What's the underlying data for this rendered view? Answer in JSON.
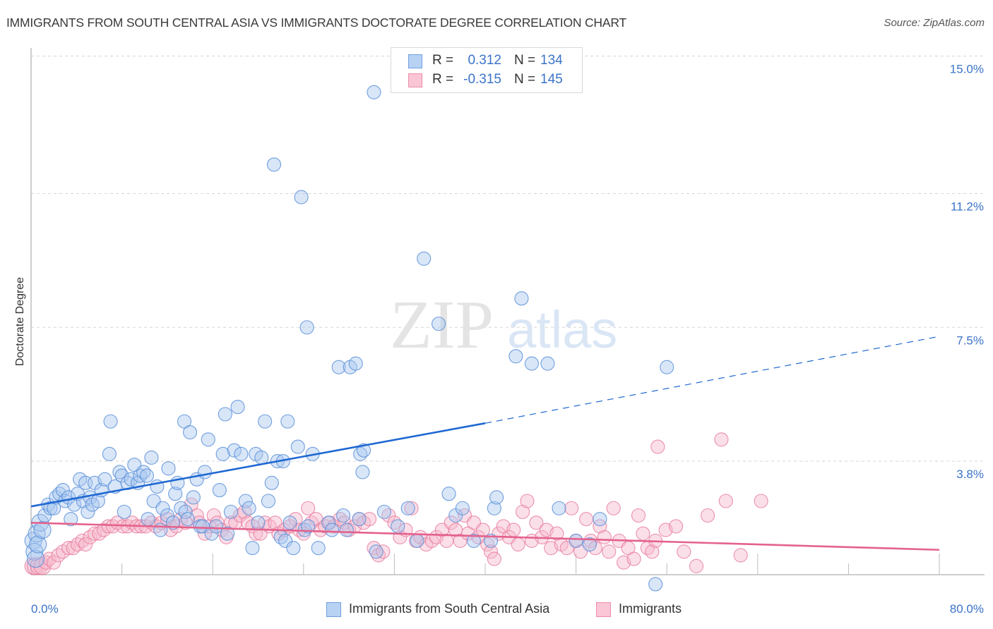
{
  "header": {
    "title": "IMMIGRANTS FROM SOUTH CENTRAL ASIA VS IMMIGRANTS DOCTORATE DEGREE CORRELATION CHART",
    "source": "Source: ZipAtlas.com"
  },
  "watermark": {
    "zip": "ZIP",
    "atlas": "atlas"
  },
  "legend": {
    "series": [
      {
        "r_label": "R =",
        "r_value": "0.312",
        "n_label": "N =",
        "n_value": "134"
      },
      {
        "r_label": "R =",
        "r_value": "-0.315",
        "n_label": "N =",
        "n_value": "145"
      }
    ]
  },
  "bottom_legend": [
    {
      "label": "Immigrants from South Central Asia"
    },
    {
      "label": "Immigrants"
    }
  ],
  "colors": {
    "blue_fill": "#a9c8f0",
    "blue_stroke": "#5a8fd8",
    "blue_line": "#1f68d2",
    "pink_fill": "#f7b9cc",
    "pink_stroke": "#e87fa0",
    "pink_line": "#e4628d",
    "tick_text": "#3b73c8",
    "grid": "#d5d5d5",
    "axis": "#bdbdbd"
  },
  "chart_data": {
    "type": "scatter",
    "title": "IMMIGRANTS FROM SOUTH CENTRAL ASIA VS IMMIGRANTS DOCTORATE DEGREE CORRELATION CHART",
    "xlabel": "",
    "ylabel": "Doctorate Degree",
    "xlim": [
      0,
      80
    ],
    "ylim": [
      0,
      15.4
    ],
    "x_tick_labels": [
      {
        "value": 0,
        "label": "0.0%"
      },
      {
        "value": 80,
        "label": "80.0%"
      }
    ],
    "x_minor_ticks": [
      0,
      8,
      16,
      24,
      32,
      40,
      48,
      56,
      64,
      72,
      80
    ],
    "y_ticks": [
      {
        "value": 3.8,
        "label": "3.8%"
      },
      {
        "value": 7.5,
        "label": "7.5%"
      },
      {
        "value": 11.2,
        "label": "11.2%"
      },
      {
        "value": 15.0,
        "label": "15.0%"
      }
    ],
    "grid": "horizontal-dashed",
    "legend_placement": "top-center",
    "series": [
      {
        "name": "Immigrants from South Central Asia",
        "R": 0.312,
        "N": 134,
        "trend": {
          "x0": 0,
          "y0": 2.55,
          "x1": 40,
          "y1": 4.85,
          "dashed_to_x": 80,
          "dashed_to_y": 7.25
        },
        "points": [
          [
            0.2,
            1.6
          ],
          [
            0.3,
            1.3
          ],
          [
            0.4,
            1.1
          ],
          [
            0.5,
            1.8
          ],
          [
            0.6,
            1.5
          ],
          [
            0.8,
            2.1
          ],
          [
            1.0,
            1.9
          ],
          [
            1.2,
            2.3
          ],
          [
            1.5,
            2.6
          ],
          [
            1.7,
            2.5
          ],
          [
            2.0,
            2.5
          ],
          [
            2.2,
            2.8
          ],
          [
            2.5,
            2.9
          ],
          [
            2.8,
            3.0
          ],
          [
            3.0,
            2.7
          ],
          [
            3.3,
            2.8
          ],
          [
            3.5,
            2.2
          ],
          [
            3.8,
            2.6
          ],
          [
            4.1,
            2.9
          ],
          [
            4.3,
            3.3
          ],
          [
            4.6,
            2.7
          ],
          [
            4.8,
            3.2
          ],
          [
            5.0,
            2.4
          ],
          [
            5.2,
            2.8
          ],
          [
            5.4,
            2.6
          ],
          [
            5.6,
            3.2
          ],
          [
            5.9,
            2.7
          ],
          [
            6.2,
            3.0
          ],
          [
            6.5,
            3.3
          ],
          [
            6.9,
            4.0
          ],
          [
            7.0,
            4.9
          ],
          [
            7.4,
            3.1
          ],
          [
            7.8,
            3.5
          ],
          [
            8.0,
            3.4
          ],
          [
            8.2,
            2.4
          ],
          [
            8.5,
            3.2
          ],
          [
            8.8,
            3.3
          ],
          [
            9.1,
            3.7
          ],
          [
            9.4,
            3.2
          ],
          [
            9.6,
            3.4
          ],
          [
            9.9,
            3.5
          ],
          [
            10.2,
            3.4
          ],
          [
            10.3,
            2.2
          ],
          [
            10.6,
            3.9
          ],
          [
            10.8,
            2.7
          ],
          [
            11.1,
            3.1
          ],
          [
            11.4,
            1.9
          ],
          [
            11.6,
            2.5
          ],
          [
            12.0,
            2.3
          ],
          [
            12.1,
            3.6
          ],
          [
            12.5,
            2.1
          ],
          [
            12.7,
            2.9
          ],
          [
            12.9,
            3.2
          ],
          [
            13.2,
            2.5
          ],
          [
            13.5,
            4.9
          ],
          [
            13.6,
            2.4
          ],
          [
            13.8,
            2.2
          ],
          [
            14.0,
            4.6
          ],
          [
            14.3,
            2.8
          ],
          [
            14.6,
            3.3
          ],
          [
            14.9,
            2.0
          ],
          [
            15.1,
            2.0
          ],
          [
            15.3,
            3.5
          ],
          [
            15.6,
            4.4
          ],
          [
            15.9,
            1.8
          ],
          [
            16.3,
            2.0
          ],
          [
            16.6,
            3.0
          ],
          [
            16.9,
            4.0
          ],
          [
            17.1,
            5.1
          ],
          [
            17.3,
            1.8
          ],
          [
            17.6,
            2.4
          ],
          [
            17.9,
            4.1
          ],
          [
            18.2,
            5.3
          ],
          [
            18.5,
            4.0
          ],
          [
            18.9,
            2.7
          ],
          [
            19.2,
            2.5
          ],
          [
            19.5,
            1.4
          ],
          [
            19.8,
            4.0
          ],
          [
            20.0,
            2.1
          ],
          [
            20.3,
            3.9
          ],
          [
            20.6,
            4.9
          ],
          [
            20.9,
            2.7
          ],
          [
            21.2,
            3.2
          ],
          [
            21.4,
            12.0
          ],
          [
            21.7,
            3.8
          ],
          [
            22.0,
            1.7
          ],
          [
            22.2,
            3.8
          ],
          [
            22.4,
            1.6
          ],
          [
            22.6,
            4.9
          ],
          [
            22.8,
            2.1
          ],
          [
            23.1,
            1.4
          ],
          [
            23.5,
            4.2
          ],
          [
            23.8,
            11.1
          ],
          [
            24.1,
            1.9
          ],
          [
            24.3,
            7.5
          ],
          [
            24.4,
            2.0
          ],
          [
            24.8,
            4.0
          ],
          [
            25.3,
            1.4
          ],
          [
            26.2,
            2.1
          ],
          [
            26.5,
            1.9
          ],
          [
            27.1,
            6.4
          ],
          [
            27.5,
            2.3
          ],
          [
            27.8,
            1.9
          ],
          [
            28.1,
            6.4
          ],
          [
            28.6,
            6.5
          ],
          [
            28.9,
            2.2
          ],
          [
            29.0,
            4.0
          ],
          [
            29.2,
            3.5
          ],
          [
            29.3,
            4.1
          ],
          [
            30.2,
            14.0
          ],
          [
            30.4,
            1.3
          ],
          [
            31.1,
            2.4
          ],
          [
            32.3,
            2.0
          ],
          [
            33.2,
            2.5
          ],
          [
            34.0,
            1.6
          ],
          [
            34.6,
            9.4
          ],
          [
            35.9,
            7.6
          ],
          [
            36.8,
            2.9
          ],
          [
            37.4,
            2.3
          ],
          [
            38.0,
            2.5
          ],
          [
            39.0,
            1.6
          ],
          [
            40.5,
            1.6
          ],
          [
            40.8,
            2.5
          ],
          [
            41.0,
            2.8
          ],
          [
            42.7,
            6.7
          ],
          [
            43.2,
            8.3
          ],
          [
            44.1,
            6.5
          ],
          [
            45.5,
            6.5
          ],
          [
            46.5,
            2.5
          ],
          [
            48.0,
            1.6
          ],
          [
            49.2,
            1.5
          ],
          [
            50.1,
            2.2
          ],
          [
            55.0,
            0.4
          ],
          [
            56.0,
            6.4
          ]
        ]
      },
      {
        "name": "Immigrants",
        "R": -0.315,
        "N": 145,
        "trend": {
          "x0": 0,
          "y0": 2.1,
          "x1": 80,
          "y1": 1.35
        },
        "points": [
          [
            0.2,
            0.9
          ],
          [
            0.4,
            0.9
          ],
          [
            0.7,
            0.9
          ],
          [
            1.0,
            0.9
          ],
          [
            1.3,
            1.0
          ],
          [
            1.6,
            1.1
          ],
          [
            2.0,
            1.0
          ],
          [
            2.4,
            1.2
          ],
          [
            2.8,
            1.3
          ],
          [
            3.3,
            1.4
          ],
          [
            3.7,
            1.4
          ],
          [
            4.1,
            1.5
          ],
          [
            4.5,
            1.6
          ],
          [
            4.8,
            1.5
          ],
          [
            5.2,
            1.7
          ],
          [
            5.6,
            1.8
          ],
          [
            6.0,
            1.8
          ],
          [
            6.4,
            1.9
          ],
          [
            6.8,
            2.0
          ],
          [
            7.2,
            2.0
          ],
          [
            7.6,
            2.1
          ],
          [
            8.1,
            2.0
          ],
          [
            8.5,
            2.0
          ],
          [
            8.9,
            2.1
          ],
          [
            9.3,
            2.0
          ],
          [
            9.7,
            2.0
          ],
          [
            10.1,
            2.0
          ],
          [
            10.6,
            2.1
          ],
          [
            11.0,
            2.0
          ],
          [
            11.5,
            2.1
          ],
          [
            12.0,
            2.2
          ],
          [
            12.3,
            1.9
          ],
          [
            12.8,
            2.0
          ],
          [
            13.2,
            2.2
          ],
          [
            13.6,
            2.1
          ],
          [
            14.1,
            2.6
          ],
          [
            14.6,
            2.3
          ],
          [
            14.8,
            2.1
          ],
          [
            15.3,
            1.8
          ],
          [
            15.7,
            2.0
          ],
          [
            16.1,
            2.3
          ],
          [
            16.4,
            2.1
          ],
          [
            16.8,
            1.9
          ],
          [
            17.2,
            1.7
          ],
          [
            17.6,
            2.1
          ],
          [
            18.0,
            2.1
          ],
          [
            18.4,
            2.3
          ],
          [
            18.8,
            2.4
          ],
          [
            19.1,
            2.1
          ],
          [
            19.5,
            2.0
          ],
          [
            19.8,
            1.8
          ],
          [
            20.2,
            1.8
          ],
          [
            20.6,
            2.1
          ],
          [
            21.0,
            2.0
          ],
          [
            21.5,
            2.1
          ],
          [
            21.8,
            1.8
          ],
          [
            22.3,
            1.9
          ],
          [
            22.8,
            2.0
          ],
          [
            23.3,
            2.2
          ],
          [
            23.6,
            1.9
          ],
          [
            24.0,
            1.8
          ],
          [
            24.4,
            2.5
          ],
          [
            24.7,
            2.1
          ],
          [
            25.1,
            2.2
          ],
          [
            25.5,
            1.9
          ],
          [
            25.9,
            2.0
          ],
          [
            26.3,
            2.1
          ],
          [
            26.7,
            2.0
          ],
          [
            27.2,
            2.2
          ],
          [
            27.6,
            2.1
          ],
          [
            28.0,
            1.9
          ],
          [
            28.5,
            2.0
          ],
          [
            28.9,
            2.2
          ],
          [
            29.3,
            2.1
          ],
          [
            29.8,
            2.2
          ],
          [
            30.2,
            1.4
          ],
          [
            30.6,
            1.2
          ],
          [
            31.0,
            1.3
          ],
          [
            31.5,
            2.3
          ],
          [
            32.0,
            2.1
          ],
          [
            32.5,
            1.7
          ],
          [
            33.0,
            1.9
          ],
          [
            33.5,
            2.5
          ],
          [
            33.9,
            1.6
          ],
          [
            34.3,
            1.7
          ],
          [
            34.8,
            1.5
          ],
          [
            35.3,
            1.6
          ],
          [
            35.7,
            1.7
          ],
          [
            36.2,
            1.9
          ],
          [
            36.6,
            1.6
          ],
          [
            37.0,
            2.1
          ],
          [
            37.4,
            1.9
          ],
          [
            37.8,
            1.6
          ],
          [
            38.2,
            2.3
          ],
          [
            38.5,
            1.8
          ],
          [
            39.0,
            2.1
          ],
          [
            39.4,
            1.7
          ],
          [
            39.8,
            1.9
          ],
          [
            40.2,
            1.5
          ],
          [
            40.5,
            1.3
          ],
          [
            40.8,
            1.1
          ],
          [
            41.2,
            1.8
          ],
          [
            41.6,
            2.0
          ],
          [
            42.1,
            1.7
          ],
          [
            42.5,
            1.9
          ],
          [
            42.9,
            1.5
          ],
          [
            43.3,
            2.4
          ],
          [
            43.7,
            2.7
          ],
          [
            44.1,
            1.6
          ],
          [
            44.5,
            2.1
          ],
          [
            45.0,
            1.7
          ],
          [
            45.4,
            1.9
          ],
          [
            45.8,
            1.4
          ],
          [
            46.3,
            1.8
          ],
          [
            46.7,
            1.5
          ],
          [
            47.2,
            1.4
          ],
          [
            47.6,
            2.5
          ],
          [
            48.0,
            1.6
          ],
          [
            48.4,
            1.3
          ],
          [
            48.9,
            2.2
          ],
          [
            49.3,
            1.6
          ],
          [
            49.7,
            1.4
          ],
          [
            50.1,
            2.0
          ],
          [
            50.5,
            1.7
          ],
          [
            50.9,
            1.3
          ],
          [
            51.3,
            2.5
          ],
          [
            51.8,
            1.6
          ],
          [
            52.2,
            1.0
          ],
          [
            52.6,
            1.4
          ],
          [
            53.1,
            1.1
          ],
          [
            53.5,
            2.3
          ],
          [
            53.9,
            1.8
          ],
          [
            54.3,
            1.4
          ],
          [
            54.7,
            1.3
          ],
          [
            55.0,
            1.6
          ],
          [
            55.2,
            4.2
          ],
          [
            55.9,
            1.9
          ],
          [
            56.8,
            2.0
          ],
          [
            57.5,
            1.3
          ],
          [
            58.6,
            0.9
          ],
          [
            59.6,
            2.3
          ],
          [
            60.8,
            4.4
          ],
          [
            61.2,
            2.7
          ],
          [
            62.5,
            1.2
          ],
          [
            64.3,
            2.7
          ]
        ]
      }
    ]
  }
}
